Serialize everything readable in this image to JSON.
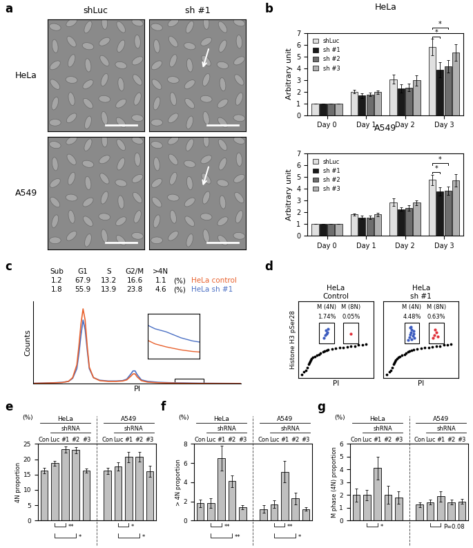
{
  "panel_labels": [
    "a",
    "b",
    "c",
    "d",
    "e",
    "f",
    "g"
  ],
  "images": {
    "columns": [
      "shLuc",
      "sh #1"
    ],
    "rows": [
      "HeLa",
      "A549"
    ]
  },
  "chart_data": [
    {
      "type": "bar",
      "title": "HeLa",
      "ylabel": "Arbitrary unit",
      "categories": [
        "Day 0",
        "Day 1",
        "Day 2",
        "Day 3"
      ],
      "series": [
        {
          "name": "shLuc",
          "color": "#e0e0e0",
          "values": [
            1,
            2.0,
            3.05,
            5.8
          ],
          "errors": [
            0,
            0.15,
            0.4,
            0.7
          ]
        },
        {
          "name": "sh #1",
          "color": "#1a1a1a",
          "values": [
            1,
            1.65,
            2.25,
            3.85
          ],
          "errors": [
            0,
            0.2,
            0.35,
            0.65
          ]
        },
        {
          "name": "sh #2",
          "color": "#6e6e6e",
          "values": [
            1,
            1.75,
            2.35,
            4.15
          ],
          "errors": [
            0,
            0.15,
            0.3,
            0.55
          ]
        },
        {
          "name": "sh #3",
          "color": "#b0b0b0",
          "values": [
            1,
            1.95,
            2.95,
            5.35
          ],
          "errors": [
            0,
            0.15,
            0.45,
            0.7
          ]
        }
      ],
      "ylim": [
        0,
        7
      ],
      "yticks": [
        0,
        1,
        2,
        3,
        4,
        5,
        6,
        7
      ],
      "legend": "upper left",
      "significance": [
        {
          "category": "Day 3",
          "from": "shLuc",
          "to": "sh #1",
          "label": "*"
        },
        {
          "category": "Day 3",
          "from": "shLuc",
          "to": "sh #2",
          "label": "*"
        }
      ]
    },
    {
      "type": "bar",
      "title": "A549",
      "ylabel": "Arbitrary unit",
      "categories": [
        "Day 0",
        "Day 1",
        "Day 2",
        "Day 3"
      ],
      "series": [
        {
          "name": "shLuc",
          "color": "#e0e0e0",
          "values": [
            1,
            1.8,
            2.85,
            4.75
          ],
          "errors": [
            0,
            0.1,
            0.3,
            0.45
          ]
        },
        {
          "name": "sh #1",
          "color": "#1a1a1a",
          "values": [
            1,
            1.55,
            2.25,
            3.75
          ],
          "errors": [
            0,
            0.15,
            0.15,
            0.35
          ]
        },
        {
          "name": "sh #2",
          "color": "#6e6e6e",
          "values": [
            1,
            1.55,
            2.35,
            3.85
          ],
          "errors": [
            0,
            0.15,
            0.25,
            0.35
          ]
        },
        {
          "name": "sh #3",
          "color": "#b0b0b0",
          "values": [
            1,
            1.8,
            2.8,
            4.7
          ],
          "errors": [
            0,
            0.15,
            0.2,
            0.55
          ]
        }
      ],
      "ylim": [
        0,
        7
      ],
      "yticks": [
        0,
        1,
        2,
        3,
        4,
        5,
        6,
        7
      ],
      "legend": "upper left",
      "significance": [
        {
          "category": "Day 3",
          "from": "shLuc",
          "to": "sh #1",
          "label": "*"
        },
        {
          "category": "Day 3",
          "from": "shLuc",
          "to": "sh #2",
          "label": "*"
        }
      ]
    },
    {
      "type": "line",
      "xlabel": "PI",
      "ylabel": "Counts",
      "x": [
        0,
        5,
        10,
        14,
        17,
        19,
        21,
        22,
        23,
        24,
        25,
        26,
        27,
        29,
        32,
        36,
        40,
        43,
        45,
        47,
        48,
        49,
        50,
        52,
        55,
        60,
        65,
        70,
        73,
        75,
        77,
        80,
        85,
        90,
        95,
        100
      ],
      "series": [
        {
          "name": "HeLa sh #1",
          "color": "#4a6fc4",
          "values": [
            0.5,
            0.8,
            1.2,
            1.7,
            3,
            7,
            20,
            40,
            65,
            85,
            72,
            45,
            20,
            8,
            4.5,
            3.5,
            3.5,
            4,
            6,
            13,
            17,
            17,
            12,
            5,
            3,
            1.8,
            1.3,
            1.0,
            0.9,
            0.8,
            0.7,
            0.6,
            0.5,
            0.4,
            0.3,
            0.2
          ]
        },
        {
          "name": "HeLa control",
          "color": "#e8602c",
          "values": [
            0.3,
            0.6,
            1,
            1.5,
            3,
            8,
            25,
            50,
            80,
            100,
            85,
            50,
            22,
            8,
            4,
            3,
            3,
            3.5,
            5,
            10,
            13,
            13,
            9,
            4,
            2,
            1.2,
            0.8,
            0.5,
            0.4,
            0.35,
            0.3,
            0.25,
            0.2,
            0.15,
            0.1,
            0.1
          ]
        }
      ],
      "xlim": [
        0,
        100
      ],
      "ylim": [
        0,
        110
      ],
      "tick_labels": false,
      "table": {
        "header": [
          "Sub",
          "G1",
          "S",
          "G2/M",
          ">4N"
        ],
        "rows": [
          [
            1.2,
            67.9,
            13.2,
            16.6,
            1.1
          ],
          [
            1.8,
            55.9,
            13.9,
            23.8,
            4.6
          ]
        ],
        "row_names": [
          "HeLa control",
          "HeLa sh #1"
        ],
        "unit": "(%)"
      },
      "inset": {
        "xlim": [
          68,
          82
        ],
        "ylim": [
          0,
          1.5
        ]
      }
    },
    {
      "type": "scatter",
      "title": "HeLa\nControl",
      "xlabel": "PI",
      "ylabel": "Histone H3 pSer28",
      "xlim": [
        0,
        100
      ],
      "ylim": [
        0,
        100
      ],
      "tick_labels": false,
      "unit": "%",
      "color": "#000000",
      "x": [
        5,
        8,
        10,
        12,
        14,
        15,
        16,
        17,
        18,
        20,
        22,
        25,
        28,
        30,
        33,
        35,
        38,
        40,
        45,
        50,
        55,
        60,
        65,
        70,
        75,
        80,
        85,
        90
      ],
      "y": [
        5,
        8,
        10,
        14,
        18,
        20,
        22,
        24,
        25,
        27,
        28,
        30,
        31,
        33,
        34,
        35,
        36,
        37,
        38,
        39,
        40,
        40,
        41,
        42,
        42,
        43,
        43,
        44
      ],
      "gates": [
        {
          "label": "M (4N)",
          "value": 1.74,
          "color": "#3b5bbf",
          "x": [
            34,
            36,
            37,
            38,
            40,
            39
          ],
          "y": [
            52,
            56,
            62,
            58,
            64,
            60
          ]
        },
        {
          "label": "M (8N)",
          "value": 0.05,
          "color": "#e0303a",
          "x": [
            70
          ],
          "y": [
            58
          ]
        }
      ]
    },
    {
      "type": "scatter",
      "title": "HeLa\nsh #1",
      "xlabel": "PI",
      "xlim": [
        0,
        100
      ],
      "ylim": [
        0,
        100
      ],
      "tick_labels": false,
      "unit": "%",
      "color": "#000000",
      "x": [
        5,
        8,
        10,
        12,
        14,
        15,
        16,
        17,
        18,
        20,
        22,
        25,
        28,
        30,
        33,
        35,
        38,
        40,
        45,
        50,
        55,
        60,
        65,
        70,
        75,
        80,
        85,
        90
      ],
      "y": [
        5,
        8,
        10,
        14,
        18,
        20,
        22,
        24,
        25,
        27,
        28,
        30,
        31,
        33,
        34,
        35,
        36,
        37,
        38,
        39,
        40,
        40,
        41,
        42,
        42,
        43,
        43,
        44
      ],
      "gates": [
        {
          "label": "M (4N)",
          "value": 4.48,
          "color": "#3b5bbf",
          "x": [
            33,
            35,
            36,
            37,
            38,
            39,
            40,
            41,
            36,
            38,
            37,
            40
          ],
          "y": [
            50,
            53,
            57,
            60,
            63,
            55,
            58,
            52,
            66,
            51,
            67,
            61
          ]
        },
        {
          "label": "M (8N)",
          "value": 0.63,
          "color": "#e0303a",
          "x": [
            66,
            68,
            70,
            72,
            69
          ],
          "y": [
            52,
            56,
            60,
            54,
            63
          ]
        }
      ]
    },
    {
      "type": "bar",
      "ylabel": "4N proportion",
      "unit_label": "(%)",
      "header": "shRNA",
      "color": "#c0c0c0",
      "ylim": [
        0,
        25
      ],
      "yticks": [
        0,
        5,
        10,
        15,
        20,
        25
      ],
      "groups": [
        {
          "name": "HeLa",
          "categories": [
            "Con",
            "Luc",
            "#1",
            "#2",
            "#3"
          ],
          "values": [
            16.3,
            18.7,
            23.2,
            23.0,
            16.3
          ],
          "errors": [
            0.8,
            0.8,
            1.0,
            1.0,
            0.7
          ],
          "significance": [
            {
              "from": "Luc",
              "to": "#1",
              "label": "**"
            },
            {
              "from": "Luc",
              "to": "#2",
              "label": "*"
            }
          ]
        },
        {
          "name": "A549",
          "categories": [
            "Con",
            "Luc",
            "#1",
            "#2",
            "#3"
          ],
          "values": [
            16.2,
            17.6,
            20.7,
            20.8,
            16.1
          ],
          "errors": [
            1.0,
            1.3,
            1.7,
            1.5,
            1.8
          ],
          "significance": [
            {
              "from": "Luc",
              "to": "#1",
              "label": "*"
            },
            {
              "from": "Luc",
              "to": "#2",
              "label": "*"
            }
          ]
        }
      ]
    },
    {
      "type": "bar",
      "ylabel": "> 4N proportion",
      "unit_label": "(%)",
      "header": "shRNA",
      "color": "#c0c0c0",
      "ylim": [
        0,
        8
      ],
      "yticks": [
        0,
        2,
        4,
        6,
        8
      ],
      "groups": [
        {
          "name": "HeLa",
          "categories": [
            "Con",
            "Luc",
            "#1",
            "#2",
            "#3"
          ],
          "values": [
            1.8,
            1.8,
            6.5,
            4.1,
            1.4
          ],
          "errors": [
            0.4,
            0.5,
            1.3,
            0.6,
            0.2
          ],
          "significance": [
            {
              "from": "Luc",
              "to": "#1",
              "label": "**"
            },
            {
              "from": "Luc",
              "to": "#2",
              "label": "**"
            }
          ]
        },
        {
          "name": "A549",
          "categories": [
            "Con",
            "Luc",
            "#1",
            "#2",
            "#3"
          ],
          "values": [
            1.2,
            1.7,
            5.1,
            2.3,
            1.2
          ],
          "errors": [
            0.4,
            0.4,
            1.1,
            0.6,
            0.2
          ],
          "significance": [
            {
              "from": "Luc",
              "to": "#1",
              "label": "**"
            },
            {
              "from": "Luc",
              "to": "#2",
              "label": "*"
            }
          ]
        }
      ]
    },
    {
      "type": "bar",
      "ylabel": "M phase (4N) proportion",
      "unit_label": "(%)",
      "header": "shRNA",
      "color": "#c0c0c0",
      "ylim": [
        0,
        6
      ],
      "yticks": [
        0,
        1,
        2,
        3,
        4,
        5,
        6
      ],
      "groups": [
        {
          "name": "HeLa",
          "categories": [
            "Con",
            "Luc",
            "#1",
            "#2",
            "#3"
          ],
          "values": [
            2.0,
            2.0,
            4.1,
            2.0,
            1.8
          ],
          "errors": [
            0.5,
            0.4,
            0.9,
            0.7,
            0.5
          ],
          "significance": [
            {
              "from": "Luc",
              "to": "#1",
              "label": "*"
            }
          ]
        },
        {
          "name": "A549",
          "categories": [
            "Con",
            "Luc",
            "#1",
            "#2",
            "#3"
          ],
          "values": [
            1.25,
            1.45,
            1.9,
            1.45,
            1.5
          ],
          "errors": [
            0.2,
            0.2,
            0.4,
            0.2,
            0.2
          ],
          "significance": [
            {
              "from": "Luc",
              "to": "#1",
              "label": "P=0.08"
            }
          ]
        }
      ]
    }
  ]
}
